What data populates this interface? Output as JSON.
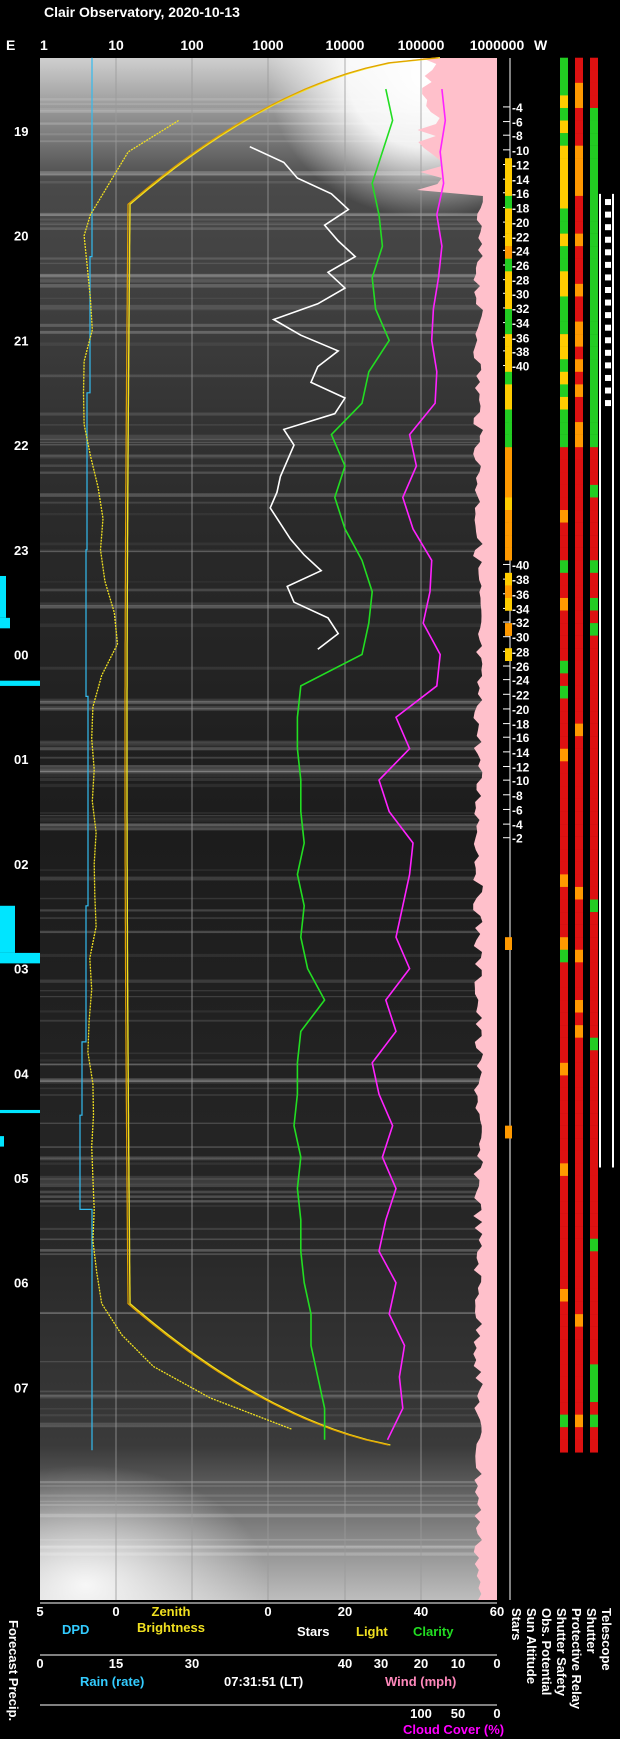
{
  "title": "Clair Observatory, 2020-10-13",
  "time_label": "07:31:51 (LT)",
  "chart_data": {
    "type": "line",
    "hours": [
      "19",
      "20",
      "21",
      "22",
      "23",
      "00",
      "01",
      "02",
      "03",
      "04",
      "05",
      "06",
      "07"
    ],
    "top_axis": {
      "left_label": "E",
      "right_label": "W",
      "ticks": [
        "1",
        "10",
        "100",
        "1000",
        "10000",
        "100000",
        "1000000"
      ]
    },
    "sun_altitude_ticks": {
      "values": [
        -4,
        -6,
        -8,
        -10,
        -12,
        -14,
        -16,
        -18,
        -20,
        -22,
        -24,
        -26,
        -28,
        -30,
        -32,
        -34,
        -36,
        -38,
        -40,
        -40,
        -38,
        -36,
        -34,
        -32,
        -30,
        -28,
        -26,
        -24,
        -22,
        -20,
        -18,
        -16,
        -14,
        -12,
        -10,
        -8,
        -6,
        -4,
        -2
      ],
      "hours": [
        18.77,
        18.91,
        19.04,
        19.18,
        19.32,
        19.46,
        19.59,
        19.73,
        19.87,
        20.01,
        20.14,
        20.28,
        20.42,
        20.55,
        20.69,
        20.83,
        20.97,
        21.1,
        21.24,
        23.14,
        23.28,
        23.42,
        23.56,
        23.69,
        23.83,
        23.97,
        24.11,
        24.24,
        24.38,
        24.52,
        24.66,
        24.79,
        24.93,
        25.07,
        25.2,
        25.34,
        25.48,
        25.62,
        25.75
      ]
    },
    "bottom_axes": [
      {
        "ticks": [
          "5",
          "0"
        ],
        "label": "DPD",
        "color": "#33ccff"
      },
      {
        "ticks": [
          "0",
          "15",
          "30"
        ],
        "label": "Rain (rate)",
        "color": "#33ccff"
      },
      {
        "ticks": [
          "0",
          "20",
          "40",
          "60"
        ],
        "color": "#ffffff"
      },
      {
        "ticks": [
          "40",
          "30",
          "20",
          "10",
          "0"
        ],
        "label": "Wind (mph)",
        "color": "#ff88bb"
      },
      {
        "ticks": [
          "100",
          "50",
          "0"
        ],
        "label": "Cloud Cover (%)",
        "color": "#ff00ff"
      }
    ],
    "legend": {
      "zenith": "Zenith",
      "brightness": "Brightness",
      "stars": "Stars",
      "light": "Light",
      "clarity": "Clarity",
      "forecast": "Forecast Precip."
    },
    "status_columns": [
      "Stars",
      "Sun Altitude",
      "Obs. Potential",
      "Shutter Safety",
      "Protective Relay",
      "Shutter",
      "Telescope"
    ],
    "colors": {
      "zenith": "#f0e020",
      "stars": "#ffffff",
      "clarity": "#22dd22",
      "cloud": "#ff22ff",
      "wind": "#ffc0cb",
      "dpd": "#33bbee",
      "ok": "#22cc22",
      "warn": "#ffcc00",
      "bad": "#dd1111"
    },
    "series": {
      "zenith_brightness": {
        "hour": [
          18.9,
          19.2,
          19.5,
          19.8,
          20.0,
          20.3,
          20.6,
          20.9,
          21.2,
          21.5,
          21.8,
          22.1,
          22.4,
          22.7,
          23.0,
          23.3,
          23.6,
          23.9,
          24.2,
          24.5,
          24.8,
          25.1,
          25.4,
          25.7,
          26.0,
          26.3,
          26.6,
          26.9,
          27.2,
          27.5,
          27.8,
          28.1,
          28.4,
          28.7,
          29.0,
          29.3,
          29.6,
          29.9,
          30.2,
          30.5,
          30.8,
          31.1,
          31.4
        ],
        "value": [
          22,
          14,
          11,
          8,
          7,
          7.5,
          8,
          8.3,
          7,
          6.9,
          7,
          8,
          9.2,
          10,
          9.6,
          10.3,
          11.8,
          12.3,
          9.8,
          8.4,
          8.2,
          8.6,
          8.3,
          8.9,
          8.6,
          8.7,
          8.9,
          7.9,
          8.2,
          7.8,
          7.6,
          8.4,
          8.5,
          8.2,
          8.4,
          8.6,
          8.4,
          9,
          9.8,
          13,
          18,
          27,
          40
        ]
      },
      "stars": {
        "hour": [
          19.15,
          19.3,
          19.45,
          19.6,
          19.75,
          19.9,
          20.05,
          20.2,
          20.35,
          20.5,
          20.65,
          20.8,
          20.95,
          21.1,
          21.25,
          21.4,
          21.55,
          21.7,
          21.85,
          22.0,
          22.15,
          22.3,
          22.45,
          22.6,
          22.75,
          22.9,
          23.05,
          23.2,
          23.35,
          23.5,
          23.65,
          23.8,
          23.95
        ],
        "value": [
          2,
          12,
          16,
          26,
          31,
          24,
          28,
          33,
          25,
          30,
          22,
          9,
          17,
          28,
          22,
          20,
          30,
          27,
          12,
          15,
          13,
          11,
          10,
          8,
          11,
          14,
          18,
          23,
          13,
          15,
          25,
          28,
          22
        ]
      },
      "clarity": {
        "hour": [
          18.6,
          18.9,
          19.2,
          19.5,
          19.8,
          20.1,
          20.4,
          20.7,
          21.0,
          21.3,
          21.6,
          21.9,
          22.2,
          22.5,
          22.8,
          23.1,
          23.4,
          23.7,
          24.0,
          24.3,
          24.6,
          24.9,
          25.2,
          25.5,
          25.8,
          26.1,
          26.4,
          26.7,
          27.0,
          27.3,
          27.6,
          27.9,
          28.2,
          28.5,
          28.8,
          29.1,
          29.4,
          29.7,
          30.0,
          30.3,
          30.6,
          30.9,
          31.2,
          31.5
        ],
        "value": [
          42,
          44,
          41,
          38,
          40,
          41,
          38,
          39,
          43,
          37,
          35,
          26,
          30,
          27,
          30,
          35,
          38,
          37,
          35,
          17,
          16,
          16,
          17,
          17,
          18,
          16,
          18,
          17,
          19,
          24,
          17,
          16,
          16,
          15,
          17,
          16,
          17,
          17,
          18,
          20,
          20,
          22,
          24,
          24
        ]
      },
      "cloud_cover": {
        "hour": [
          18.6,
          18.9,
          19.2,
          19.5,
          19.8,
          20.1,
          20.4,
          20.7,
          21.0,
          21.3,
          21.6,
          21.9,
          22.2,
          22.5,
          22.8,
          23.1,
          23.4,
          23.7,
          24.0,
          24.3,
          24.6,
          24.9,
          25.2,
          25.5,
          25.8,
          26.1,
          26.4,
          26.7,
          27.0,
          27.3,
          27.6,
          27.9,
          28.2,
          28.5,
          28.8,
          29.1,
          29.4,
          29.7,
          30.0,
          30.3,
          30.6,
          30.9,
          31.2,
          31.5
        ],
        "value": [
          3,
          1,
          4,
          2,
          6,
          3,
          5,
          8,
          9,
          6,
          7,
          22,
          18,
          26,
          20,
          9,
          10,
          14,
          4,
          6,
          30,
          22,
          40,
          34,
          20,
          22,
          26,
          30,
          22,
          36,
          30,
          44,
          40,
          32,
          38,
          30,
          36,
          40,
          30,
          34,
          25,
          28,
          26,
          35
        ]
      }
    }
  }
}
